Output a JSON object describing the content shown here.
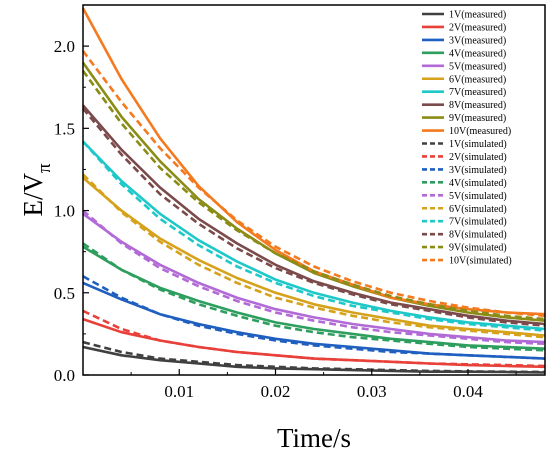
{
  "chart_data": {
    "type": "line",
    "xlabel": "Time/s",
    "ylabel_main": "E/V",
    "ylabel_sub": "π",
    "xlim": [
      0.0,
      0.048
    ],
    "ylim": [
      0.0,
      2.25
    ],
    "xticks": [
      0.01,
      0.02,
      0.03,
      0.04
    ],
    "xtick_labels": [
      "0.01",
      "0.02",
      "0.03",
      "0.04"
    ],
    "yticks": [
      0.0,
      0.5,
      1.0,
      1.5,
      2.0
    ],
    "ytick_labels": [
      "0.0",
      "0.5",
      "1.0",
      "1.5",
      "2.0"
    ],
    "legend_position": "top-right",
    "grid": false,
    "x": [
      0.0,
      0.004,
      0.008,
      0.012,
      0.016,
      0.02,
      0.024,
      0.028,
      0.032,
      0.036,
      0.04,
      0.044,
      0.048
    ],
    "series": [
      {
        "name": "1V(measured)",
        "color": "#404040",
        "dash": false,
        "values": [
          0.17,
          0.12,
          0.09,
          0.07,
          0.05,
          0.04,
          0.035,
          0.03,
          0.025,
          0.02,
          0.02,
          0.018,
          0.015
        ]
      },
      {
        "name": "2V(measured)",
        "color": "#e8413a",
        "dash": false,
        "values": [
          0.34,
          0.26,
          0.21,
          0.17,
          0.14,
          0.12,
          0.1,
          0.09,
          0.08,
          0.07,
          0.06,
          0.055,
          0.05
        ]
      },
      {
        "name": "3V(measured)",
        "color": "#1f5fbf",
        "dash": false,
        "values": [
          0.56,
          0.46,
          0.37,
          0.31,
          0.26,
          0.22,
          0.19,
          0.17,
          0.15,
          0.13,
          0.12,
          0.11,
          0.1
        ]
      },
      {
        "name": "4V(measured)",
        "color": "#2e9e5e",
        "dash": false,
        "values": [
          0.78,
          0.64,
          0.53,
          0.45,
          0.38,
          0.32,
          0.28,
          0.25,
          0.22,
          0.2,
          0.18,
          0.17,
          0.16
        ]
      },
      {
        "name": "5V(measured)",
        "color": "#b26ad6",
        "dash": false,
        "values": [
          0.98,
          0.81,
          0.67,
          0.56,
          0.47,
          0.4,
          0.35,
          0.31,
          0.28,
          0.25,
          0.23,
          0.21,
          0.2
        ]
      },
      {
        "name": "6V(measured)",
        "color": "#d6a21c",
        "dash": false,
        "values": [
          1.2,
          1.0,
          0.83,
          0.7,
          0.59,
          0.5,
          0.43,
          0.38,
          0.34,
          0.3,
          0.28,
          0.26,
          0.24
        ]
      },
      {
        "name": "7V(measured)",
        "color": "#1ec8c8",
        "dash": false,
        "values": [
          1.42,
          1.18,
          0.98,
          0.82,
          0.69,
          0.58,
          0.5,
          0.44,
          0.39,
          0.35,
          0.32,
          0.3,
          0.28
        ]
      },
      {
        "name": "8V(measured)",
        "color": "#7b4a4a",
        "dash": false,
        "values": [
          1.64,
          1.37,
          1.14,
          0.95,
          0.8,
          0.67,
          0.57,
          0.5,
          0.44,
          0.4,
          0.36,
          0.33,
          0.31
        ]
      },
      {
        "name": "9V(measured)",
        "color": "#8a8c16",
        "dash": false,
        "values": [
          1.9,
          1.57,
          1.3,
          1.07,
          0.89,
          0.74,
          0.62,
          0.54,
          0.47,
          0.42,
          0.38,
          0.35,
          0.33
        ]
      },
      {
        "name": "10V(measured)",
        "color": "#f47a1f",
        "dash": false,
        "values": [
          2.23,
          1.8,
          1.44,
          1.15,
          0.93,
          0.76,
          0.63,
          0.55,
          0.47,
          0.43,
          0.4,
          0.38,
          0.37
        ]
      },
      {
        "name": "1V(simulated)",
        "color": "#404040",
        "dash": true,
        "values": [
          0.2,
          0.14,
          0.1,
          0.08,
          0.06,
          0.05,
          0.04,
          0.035,
          0.03,
          0.025,
          0.022,
          0.02,
          0.018
        ]
      },
      {
        "name": "2V(simulated)",
        "color": "#e8413a",
        "dash": true,
        "values": [
          0.39,
          0.28,
          0.21,
          0.17,
          0.14,
          0.12,
          0.1,
          0.09,
          0.08,
          0.07,
          0.065,
          0.06,
          0.055
        ]
      },
      {
        "name": "3V(simulated)",
        "color": "#1f5fbf",
        "dash": true,
        "values": [
          0.6,
          0.47,
          0.37,
          0.3,
          0.25,
          0.21,
          0.18,
          0.16,
          0.14,
          0.13,
          0.12,
          0.11,
          0.1
        ]
      },
      {
        "name": "4V(simulated)",
        "color": "#2e9e5e",
        "dash": true,
        "values": [
          0.8,
          0.64,
          0.52,
          0.43,
          0.36,
          0.3,
          0.26,
          0.23,
          0.21,
          0.19,
          0.17,
          0.16,
          0.15
        ]
      },
      {
        "name": "5V(simulated)",
        "color": "#b26ad6",
        "dash": true,
        "values": [
          1.0,
          0.8,
          0.65,
          0.54,
          0.45,
          0.38,
          0.33,
          0.29,
          0.26,
          0.24,
          0.22,
          0.2,
          0.19
        ]
      },
      {
        "name": "6V(simulated)",
        "color": "#d6a21c",
        "dash": true,
        "values": [
          1.22,
          0.99,
          0.81,
          0.67,
          0.56,
          0.47,
          0.41,
          0.36,
          0.32,
          0.29,
          0.27,
          0.25,
          0.23
        ]
      },
      {
        "name": "7V(simulated)",
        "color": "#1ec8c8",
        "dash": true,
        "values": [
          1.42,
          1.16,
          0.95,
          0.79,
          0.66,
          0.56,
          0.48,
          0.42,
          0.38,
          0.34,
          0.31,
          0.29,
          0.27
        ]
      },
      {
        "name": "8V(simulated)",
        "color": "#7b4a4a",
        "dash": true,
        "values": [
          1.62,
          1.34,
          1.1,
          0.92,
          0.77,
          0.65,
          0.56,
          0.49,
          0.43,
          0.39,
          0.35,
          0.32,
          0.3
        ]
      },
      {
        "name": "9V(simulated)",
        "color": "#8a8c16",
        "dash": true,
        "values": [
          1.85,
          1.53,
          1.26,
          1.05,
          0.88,
          0.74,
          0.63,
          0.55,
          0.48,
          0.43,
          0.39,
          0.36,
          0.34
        ]
      },
      {
        "name": "10V(simulated)",
        "color": "#f47a1f",
        "dash": true,
        "values": [
          1.97,
          1.66,
          1.38,
          1.14,
          0.94,
          0.78,
          0.66,
          0.57,
          0.5,
          0.45,
          0.41,
          0.38,
          0.36
        ]
      }
    ]
  }
}
